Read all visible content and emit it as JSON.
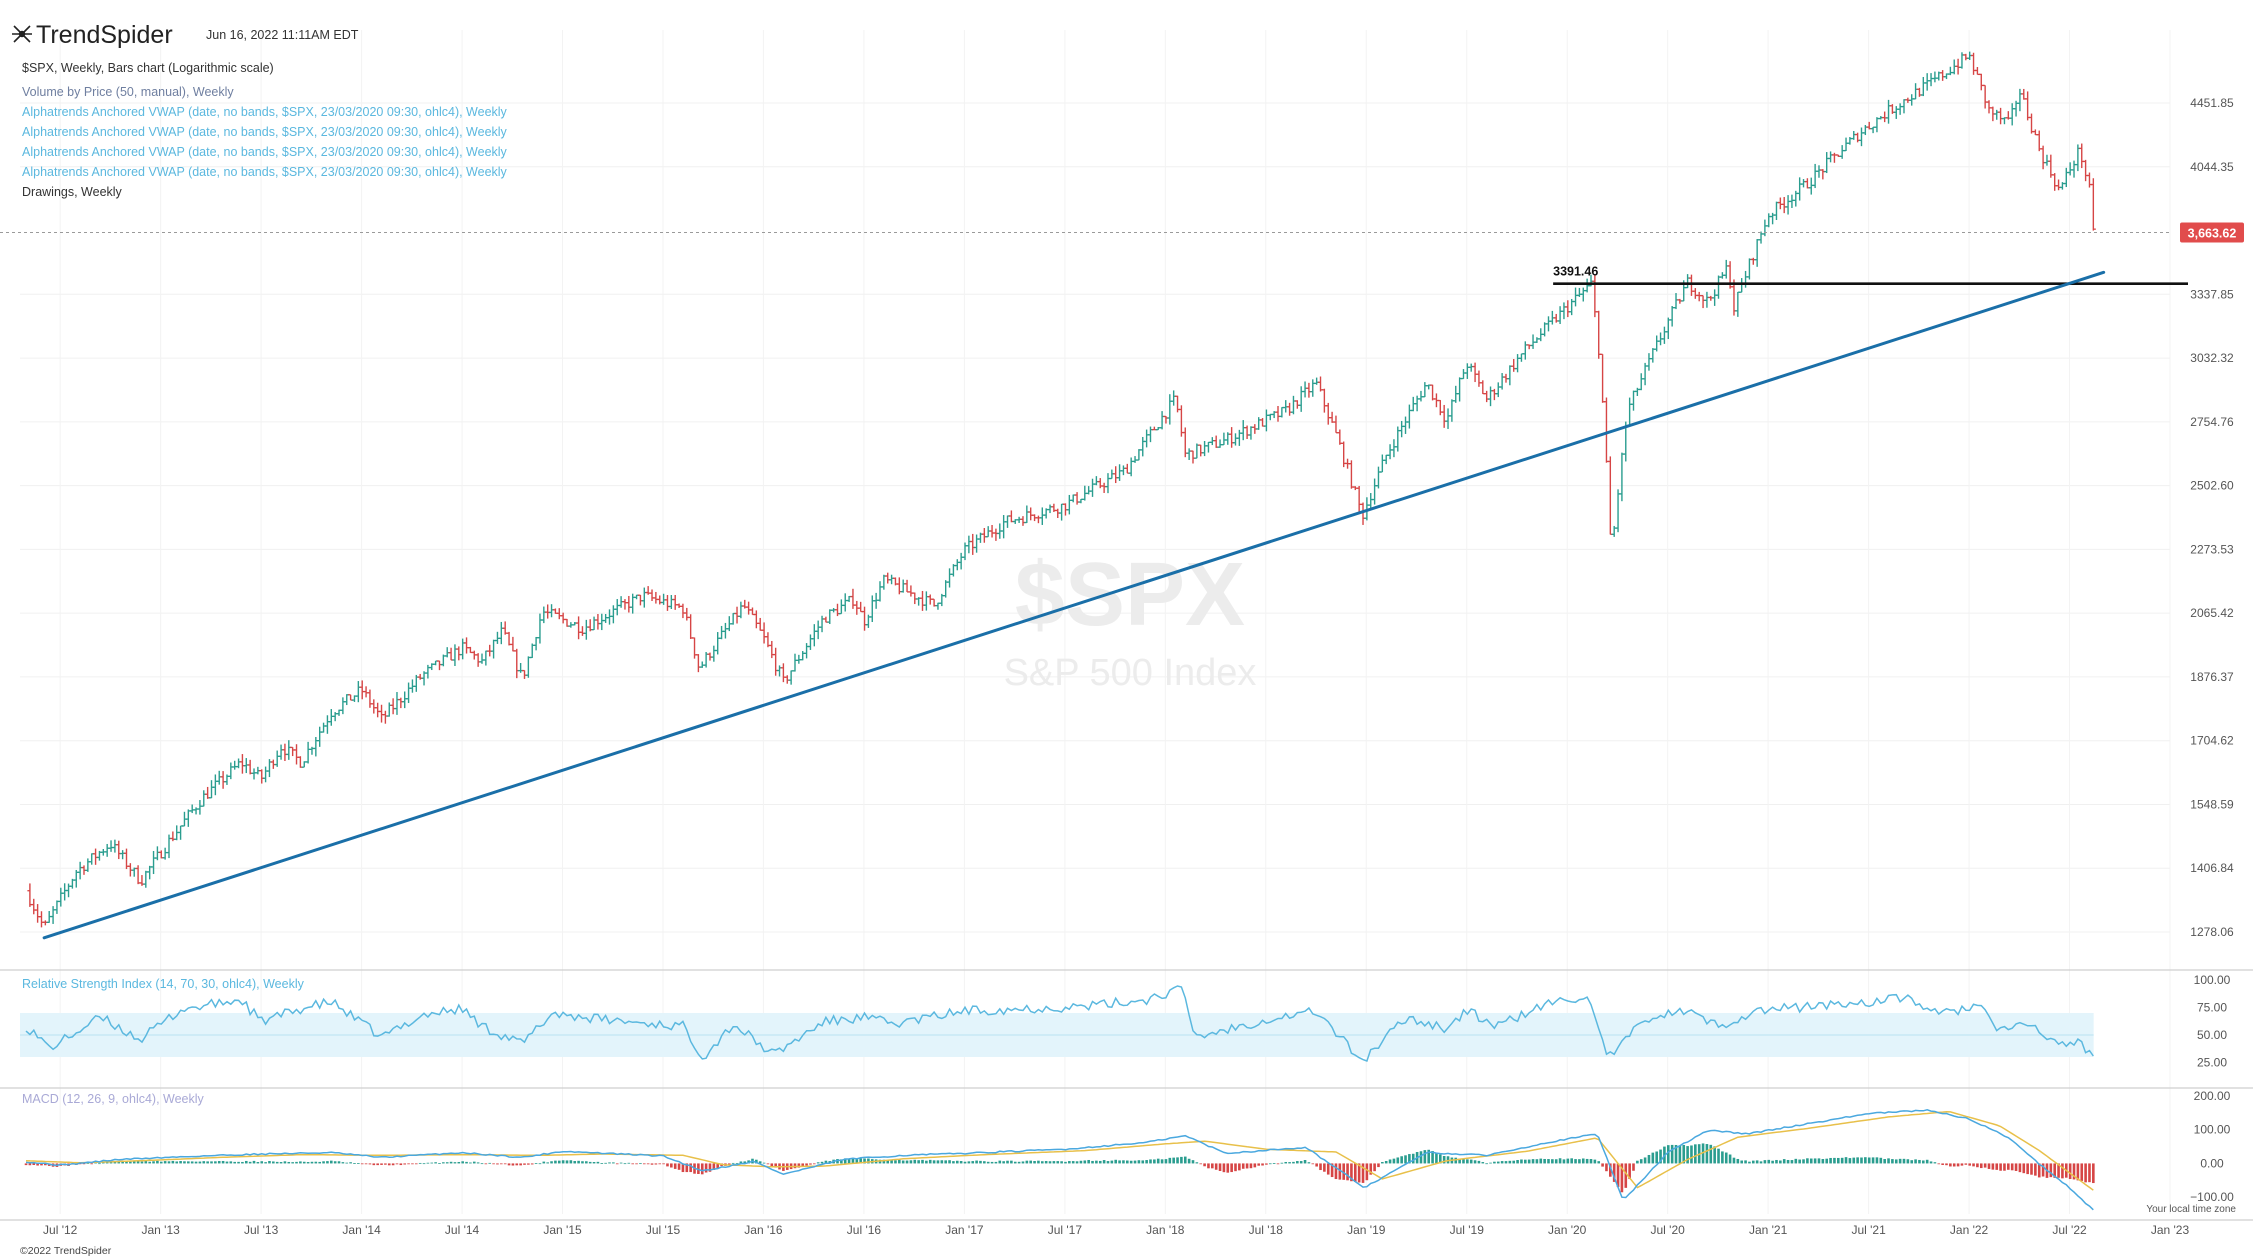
{
  "header": {
    "brand": "TrendSpider",
    "datetime": "Jun 16, 2022 11:11AM EDT"
  },
  "legend": [
    {
      "text": "$SPX, Weekly, Bars chart (Logarithmic scale)",
      "color": "#333333"
    },
    {
      "text": "Volume by Price (50, manual), Weekly",
      "color": "#6f7fa0"
    },
    {
      "text": "Alphatrends Anchored VWAP (date, no bands, $SPX, 23/03/2020 09:30, ohlc4), Weekly",
      "color": "#5bb8df"
    },
    {
      "text": "Alphatrends Anchored VWAP (date, no bands, $SPX, 23/03/2020 09:30, ohlc4), Weekly",
      "color": "#5bb8df"
    },
    {
      "text": "Alphatrends Anchored VWAP (date, no bands, $SPX, 23/03/2020 09:30, ohlc4), Weekly",
      "color": "#5bb8df"
    },
    {
      "text": "Alphatrends Anchored VWAP (date, no bands, $SPX, 23/03/2020 09:30, ohlc4), Weekly",
      "color": "#5bb8df"
    },
    {
      "text": "Drawings, Weekly",
      "color": "#333333"
    }
  ],
  "watermark": {
    "symbol": "$SPX",
    "name": "S&P 500 Index"
  },
  "footer": {
    "copyright": "©2022 TrendSpider",
    "timezone_note": "Your local time zone"
  },
  "colors": {
    "up": "#2a9d8f",
    "down": "#d64545",
    "trendline": "#1a6fa8",
    "rsi": "#5bb8df",
    "macd_line": "#4aa8df",
    "signal_line": "#e8c04a",
    "price_badge": "#e14c4c"
  },
  "chart_data": [
    {
      "type": "line",
      "panel": "price",
      "scale": "log",
      "price_axis_ticks": [
        "4451.85",
        "4044.35",
        "3337.85",
        "3032.32",
        "2754.76",
        "2502.60",
        "2273.53",
        "2065.42",
        "1876.37",
        "1704.62",
        "1548.59",
        "1406.84",
        "1278.06"
      ],
      "time_axis_ticks": [
        "Jul '12",
        "Jan '13",
        "Jul '13",
        "Jan '14",
        "Jul '14",
        "Jan '15",
        "Jul '15",
        "Jan '16",
        "Jul '16",
        "Jan '17",
        "Jul '17",
        "Jan '18",
        "Jul '18",
        "Jan '19",
        "Jul '19",
        "Jan '20",
        "Jul '20",
        "Jan '21",
        "Jul '21",
        "Jan '22",
        "Jul '22",
        "Jan '23"
      ],
      "last_price": "3,663.62",
      "horizontal_level": {
        "label": "3391.46",
        "value": 3391.46,
        "from": 2019.93,
        "to": 2023.0
      },
      "trendline": {
        "from": [
          2012.42,
          1267
        ],
        "to": [
          2022.67,
          3450
        ]
      },
      "price_anchors": [
        [
          2012.33,
          1360
        ],
        [
          2012.42,
          1285
        ],
        [
          2012.58,
          1400
        ],
        [
          2012.75,
          1460
        ],
        [
          2012.9,
          1380
        ],
        [
          2013.0,
          1440
        ],
        [
          2013.2,
          1560
        ],
        [
          2013.4,
          1650
        ],
        [
          2013.5,
          1610
        ],
        [
          2013.6,
          1690
        ],
        [
          2013.7,
          1650
        ],
        [
          2013.85,
          1780
        ],
        [
          2014.0,
          1840
        ],
        [
          2014.1,
          1760
        ],
        [
          2014.3,
          1880
        ],
        [
          2014.5,
          1960
        ],
        [
          2014.6,
          1920
        ],
        [
          2014.7,
          2010
        ],
        [
          2014.8,
          1870
        ],
        [
          2014.9,
          2070
        ],
        [
          2015.1,
          2020
        ],
        [
          2015.4,
          2120
        ],
        [
          2015.6,
          2080
        ],
        [
          2015.68,
          1900
        ],
        [
          2015.9,
          2090
        ],
        [
          2016.0,
          1990
        ],
        [
          2016.1,
          1860
        ],
        [
          2016.3,
          2050
        ],
        [
          2016.45,
          2110
        ],
        [
          2016.5,
          2040
        ],
        [
          2016.6,
          2170
        ],
        [
          2016.85,
          2090
        ],
        [
          2017.0,
          2270
        ],
        [
          2017.2,
          2370
        ],
        [
          2017.5,
          2430
        ],
        [
          2017.8,
          2560
        ],
        [
          2018.05,
          2850
        ],
        [
          2018.1,
          2620
        ],
        [
          2018.3,
          2680
        ],
        [
          2018.6,
          2800
        ],
        [
          2018.75,
          2920
        ],
        [
          2018.85,
          2700
        ],
        [
          2018.98,
          2390
        ],
        [
          2019.1,
          2620
        ],
        [
          2019.3,
          2920
        ],
        [
          2019.4,
          2760
        ],
        [
          2019.5,
          3010
        ],
        [
          2019.6,
          2850
        ],
        [
          2019.8,
          3080
        ],
        [
          2020.12,
          3390
        ],
        [
          2020.16,
          3050
        ],
        [
          2020.22,
          2250
        ],
        [
          2020.3,
          2800
        ],
        [
          2020.45,
          3100
        ],
        [
          2020.6,
          3400
        ],
        [
          2020.7,
          3300
        ],
        [
          2020.8,
          3480
        ],
        [
          2020.83,
          3270
        ],
        [
          2021.0,
          3760
        ],
        [
          2021.2,
          3950
        ],
        [
          2021.45,
          4250
        ],
        [
          2021.6,
          4400
        ],
        [
          2021.8,
          4580
        ],
        [
          2022.0,
          4780
        ],
        [
          2022.1,
          4400
        ],
        [
          2022.2,
          4310
        ],
        [
          2022.25,
          4540
        ],
        [
          2022.35,
          4150
        ],
        [
          2022.45,
          3900
        ],
        [
          2022.55,
          4150
        ],
        [
          2022.6,
          3900
        ],
        [
          2022.62,
          3663.62
        ]
      ]
    },
    {
      "type": "line",
      "panel": "rsi",
      "title": "Relative Strength Index (14, 70, 30, ohlc4), Weekly",
      "axis_ticks": [
        "100.00",
        "75.00",
        "50.00",
        "25.00"
      ],
      "ylim": [
        0,
        100
      ],
      "bands": [
        30,
        70
      ],
      "anchors": [
        [
          2012.33,
          58
        ],
        [
          2012.45,
          38
        ],
        [
          2012.7,
          66
        ],
        [
          2012.9,
          46
        ],
        [
          2013.1,
          73
        ],
        [
          2013.4,
          82
        ],
        [
          2013.5,
          62
        ],
        [
          2013.7,
          74
        ],
        [
          2013.85,
          80
        ],
        [
          2014.1,
          48
        ],
        [
          2014.3,
          68
        ],
        [
          2014.5,
          74
        ],
        [
          2014.6,
          58
        ],
        [
          2014.8,
          42
        ],
        [
          2014.95,
          70
        ],
        [
          2015.2,
          64
        ],
        [
          2015.6,
          58
        ],
        [
          2015.7,
          30
        ],
        [
          2015.85,
          60
        ],
        [
          2016.05,
          32
        ],
        [
          2016.3,
          62
        ],
        [
          2016.5,
          66
        ],
        [
          2016.65,
          60
        ],
        [
          2017.0,
          72
        ],
        [
          2017.3,
          74
        ],
        [
          2017.6,
          76
        ],
        [
          2017.9,
          82
        ],
        [
          2018.08,
          92
        ],
        [
          2018.15,
          48
        ],
        [
          2018.5,
          64
        ],
        [
          2018.75,
          72
        ],
        [
          2018.98,
          26
        ],
        [
          2019.2,
          66
        ],
        [
          2019.4,
          56
        ],
        [
          2019.5,
          72
        ],
        [
          2019.65,
          58
        ],
        [
          2019.9,
          78
        ],
        [
          2020.1,
          86
        ],
        [
          2020.2,
          28
        ],
        [
          2020.4,
          66
        ],
        [
          2020.6,
          72
        ],
        [
          2020.75,
          58
        ],
        [
          2020.95,
          72
        ],
        [
          2021.2,
          76
        ],
        [
          2021.5,
          80
        ],
        [
          2021.7,
          84
        ],
        [
          2021.85,
          68
        ],
        [
          2022.05,
          78
        ],
        [
          2022.15,
          52
        ],
        [
          2022.3,
          62
        ],
        [
          2022.4,
          44
        ],
        [
          2022.55,
          42
        ],
        [
          2022.62,
          33
        ]
      ]
    },
    {
      "type": "bar",
      "panel": "macd",
      "title": "MACD (12, 26, 9, ohlc4), Weekly",
      "axis_ticks": [
        "200.00",
        "100.00",
        "0.00",
        "−100.00"
      ],
      "ylim": [
        -150,
        200
      ],
      "macd_anchors": [
        [
          2012.33,
          5
        ],
        [
          2012.5,
          -5
        ],
        [
          2012.8,
          12
        ],
        [
          2013.2,
          22
        ],
        [
          2013.5,
          28
        ],
        [
          2013.85,
          32
        ],
        [
          2014.1,
          18
        ],
        [
          2014.5,
          32
        ],
        [
          2014.8,
          18
        ],
        [
          2015.0,
          36
        ],
        [
          2015.5,
          22
        ],
        [
          2015.7,
          -22
        ],
        [
          2015.95,
          6
        ],
        [
          2016.1,
          -32
        ],
        [
          2016.4,
          12
        ],
        [
          2016.7,
          24
        ],
        [
          2017.0,
          30
        ],
        [
          2017.5,
          42
        ],
        [
          2017.9,
          62
        ],
        [
          2018.1,
          82
        ],
        [
          2018.3,
          30
        ],
        [
          2018.7,
          48
        ],
        [
          2018.99,
          -72
        ],
        [
          2019.3,
          32
        ],
        [
          2019.6,
          24
        ],
        [
          2019.9,
          62
        ],
        [
          2020.15,
          88
        ],
        [
          2020.28,
          -110
        ],
        [
          2020.5,
          32
        ],
        [
          2020.7,
          98
        ],
        [
          2020.9,
          88
        ],
        [
          2021.2,
          118
        ],
        [
          2021.5,
          148
        ],
        [
          2021.8,
          158
        ],
        [
          2022.0,
          132
        ],
        [
          2022.2,
          76
        ],
        [
          2022.35,
          -2
        ],
        [
          2022.5,
          -72
        ],
        [
          2022.62,
          -140
        ]
      ],
      "signal_anchors": [
        [
          2012.33,
          8
        ],
        [
          2012.6,
          2
        ],
        [
          2012.9,
          8
        ],
        [
          2013.3,
          18
        ],
        [
          2013.7,
          26
        ],
        [
          2014.1,
          24
        ],
        [
          2014.5,
          26
        ],
        [
          2014.9,
          24
        ],
        [
          2015.2,
          28
        ],
        [
          2015.6,
          24
        ],
        [
          2015.8,
          -4
        ],
        [
          2016.05,
          -10
        ],
        [
          2016.3,
          -8
        ],
        [
          2016.7,
          14
        ],
        [
          2017.1,
          26
        ],
        [
          2017.6,
          38
        ],
        [
          2018.0,
          58
        ],
        [
          2018.2,
          66
        ],
        [
          2018.5,
          42
        ],
        [
          2018.85,
          34
        ],
        [
          2019.08,
          -46
        ],
        [
          2019.4,
          8
        ],
        [
          2019.8,
          36
        ],
        [
          2020.15,
          76
        ],
        [
          2020.35,
          -72
        ],
        [
          2020.6,
          12
        ],
        [
          2020.85,
          78
        ],
        [
          2021.2,
          104
        ],
        [
          2021.6,
          138
        ],
        [
          2021.9,
          154
        ],
        [
          2022.15,
          112
        ],
        [
          2022.35,
          38
        ],
        [
          2022.5,
          -28
        ],
        [
          2022.62,
          -80
        ]
      ]
    }
  ]
}
